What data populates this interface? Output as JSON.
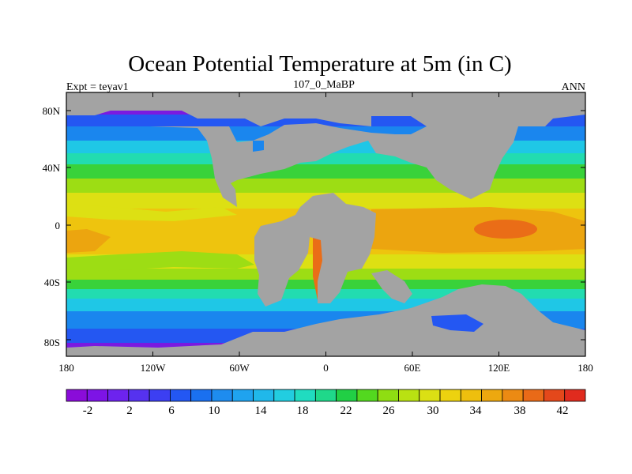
{
  "title": "Ocean Potential Temperature at 5m (in C)",
  "subtitle_left": "Expt = teyav1",
  "subtitle_center": "107_0_MaBP",
  "subtitle_right": "ANN",
  "x_ticks": [
    "180",
    "120W",
    "60W",
    "0",
    "60E",
    "120E",
    "180"
  ],
  "y_ticks": [
    "80N",
    "40N",
    "0",
    "40S",
    "80S"
  ],
  "colorbar": {
    "labels": [
      "-2",
      "2",
      "6",
      "10",
      "14",
      "18",
      "22",
      "26",
      "30",
      "34",
      "38",
      "42"
    ],
    "colors": [
      "#8a0cd9",
      "#7d14e6",
      "#6d23ee",
      "#5632ef",
      "#3c3ff2",
      "#2357f3",
      "#1a70f0",
      "#1e8cef",
      "#1fa3ef",
      "#20b8ea",
      "#22cde0",
      "#20dcc0",
      "#1fd88a",
      "#21cf45",
      "#53d81f",
      "#8fdd12",
      "#b9e112",
      "#dbe014",
      "#edd20f",
      "#eebf0e",
      "#eda80f",
      "#ec8a13",
      "#e96a18",
      "#e4481b",
      "#e02b1e"
    ]
  },
  "map_colors": {
    "land": "#a3a3a3",
    "polar": "#7a1ae0",
    "deep_blue": "#2457f2",
    "blue": "#1a86ee",
    "cyan": "#1fc7e6",
    "teal": "#22dcb0",
    "green": "#39d23a",
    "lime": "#9ddd14",
    "yellow": "#dde013",
    "gold": "#eec40e",
    "orange": "#eca50f",
    "red_orange": "#ea6d17"
  }
}
